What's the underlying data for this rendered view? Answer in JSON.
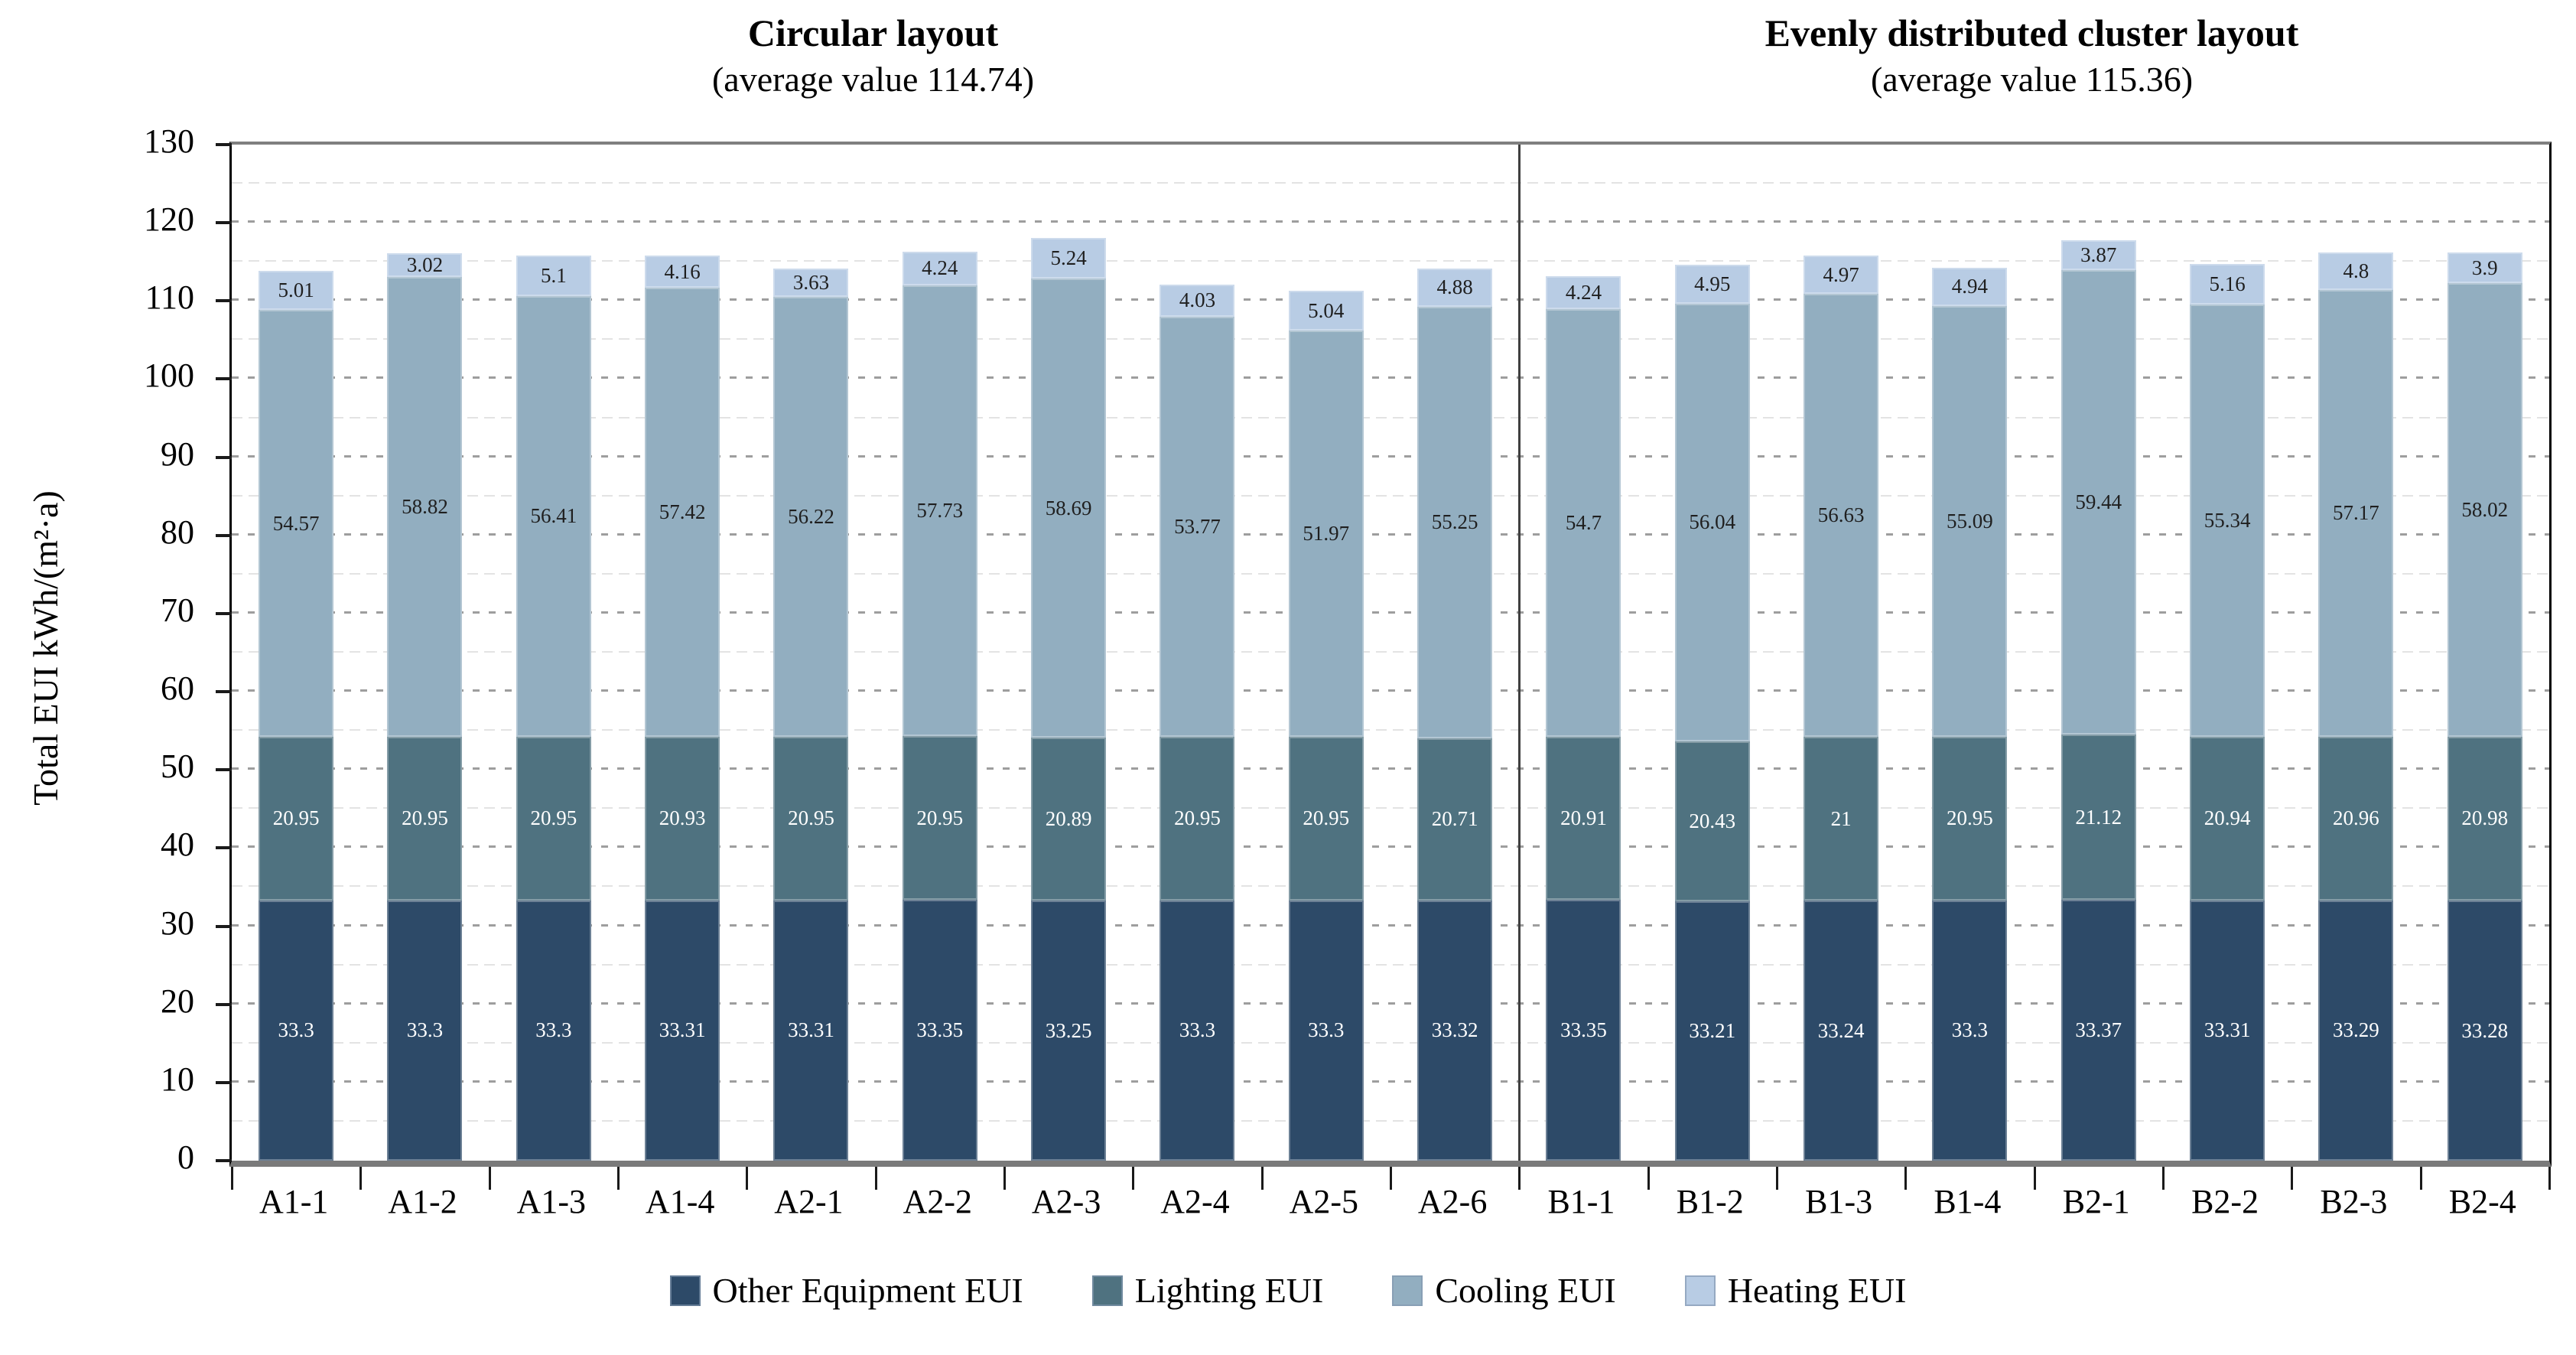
{
  "y_axis": {
    "label": "Total EUI kWh/(m²·a)",
    "min": 0,
    "max": 130,
    "major_step": 10,
    "minor_step": 5
  },
  "chart_data": {
    "type": "bar",
    "stacked": true,
    "grid": "dotted horizontal, minor lines every 5",
    "legend_position": "bottom",
    "ylabel": "Total EUI kWh/(m²·a)",
    "ylim": [
      0,
      130
    ],
    "ytick_step": 10,
    "groups": [
      {
        "title": "Circular layout",
        "subtitle": "(average value 114.74)",
        "average": 114.74,
        "categories": [
          "A1-1",
          "A1-2",
          "A1-3",
          "A1-4",
          "A2-1",
          "A2-2",
          "A2-3",
          "A2-4",
          "A2-5",
          "A2-6"
        ]
      },
      {
        "title": "Evenly distributed cluster layout",
        "subtitle": "(average value 115.36)",
        "average": 115.36,
        "categories": [
          "B1-1",
          "B1-2",
          "B1-3",
          "B1-4",
          "B2-1",
          "B2-2",
          "B2-3",
          "B2-4"
        ]
      }
    ],
    "categories": [
      "A1-1",
      "A1-2",
      "A1-3",
      "A1-4",
      "A2-1",
      "A2-2",
      "A2-3",
      "A2-4",
      "A2-5",
      "A2-6",
      "B1-1",
      "B1-2",
      "B1-3",
      "B1-4",
      "B2-1",
      "B2-2",
      "B2-3",
      "B2-4"
    ],
    "series": [
      {
        "name": "Other Equipment EUI",
        "color": "#2d4a68",
        "label_color": "#ffffff",
        "values": [
          33.3,
          33.3,
          33.3,
          33.31,
          33.31,
          33.35,
          33.25,
          33.3,
          33.3,
          33.32,
          33.35,
          33.21,
          33.24,
          33.3,
          33.37,
          33.31,
          33.29,
          33.28
        ]
      },
      {
        "name": "Lighting EUI",
        "color": "#4f7280",
        "label_color": "#ffffff",
        "values": [
          20.95,
          20.95,
          20.95,
          20.93,
          20.95,
          20.95,
          20.89,
          20.95,
          20.95,
          20.71,
          20.91,
          20.43,
          21,
          20.95,
          21.12,
          20.94,
          20.96,
          20.98
        ]
      },
      {
        "name": "Cooling EUI",
        "color": "#92aec0",
        "label_color": "#1f1f1f",
        "values": [
          54.57,
          58.82,
          56.41,
          57.42,
          56.22,
          57.73,
          58.69,
          53.77,
          51.97,
          55.25,
          54.7,
          56.04,
          56.63,
          55.09,
          59.44,
          55.34,
          57.17,
          58.02
        ]
      },
      {
        "name": "Heating EUI",
        "color": "#b8cce4",
        "label_color": "#1f1f1f",
        "values": [
          5.01,
          3.02,
          5.1,
          4.16,
          3.63,
          4.24,
          5.24,
          4.03,
          5.04,
          4.88,
          4.24,
          4.95,
          4.97,
          4.94,
          3.87,
          5.16,
          4.8,
          3.9
        ]
      }
    ]
  }
}
